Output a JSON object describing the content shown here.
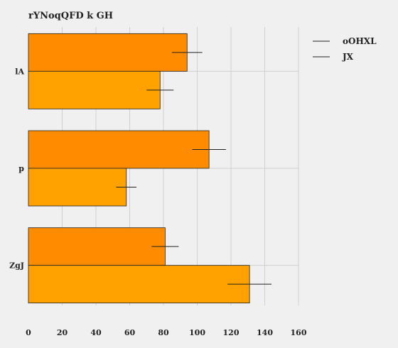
{
  "chart_data": {
    "type": "bar",
    "orientation": "horizontal",
    "title": "rYNoqQFD k  GH",
    "categories": [
      "lA",
      "p",
      "ZgJ"
    ],
    "series": [
      {
        "name": "oOHXL",
        "color": "#ff8c00",
        "values": [
          94,
          107,
          81
        ],
        "errors": [
          9,
          10,
          8
        ]
      },
      {
        "name": "JX",
        "color": "#ffa200",
        "values": [
          78,
          58,
          131
        ],
        "errors": [
          8,
          6,
          13
        ]
      }
    ],
    "xlim": [
      0,
      160
    ],
    "xticks": [
      0,
      20,
      40,
      60,
      80,
      100,
      120,
      140,
      160
    ],
    "xlabel": "",
    "ylabel": "",
    "grid": true,
    "legend": "top-right"
  }
}
